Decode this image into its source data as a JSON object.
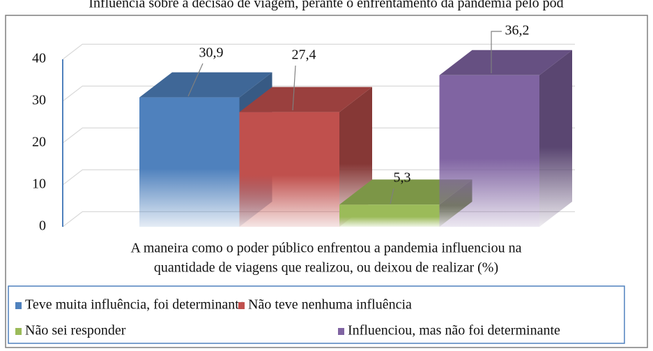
{
  "chart_data": {
    "type": "bar",
    "title": "Influência sobre a decisão de viagem, perante o enfrentamento da pandemia pelo pod",
    "xlabel": [
      "A maneira como o poder público enfrentou a pandemia influenciou na",
      "quantidade de viagens que realizou, ou deixou de realizar (%)"
    ],
    "series": [
      {
        "name": "Teve muita influência, foi determinante",
        "color": "#4f81bd",
        "values": [
          30.9
        ],
        "value_labels": [
          "30,9"
        ]
      },
      {
        "name": "Não teve nenhuma influência",
        "color": "#c0504d",
        "values": [
          27.4
        ],
        "value_labels": [
          "27,4"
        ]
      },
      {
        "name": "Não sei responder",
        "color": "#9bbb59",
        "values": [
          5.3
        ],
        "value_labels": [
          "5,3"
        ]
      },
      {
        "name": "Influenciou, mas não foi determinante",
        "color": "#8064a2",
        "values": [
          36.2
        ],
        "value_labels": [
          "36,2"
        ]
      }
    ],
    "ylim": [
      0,
      40
    ],
    "yticks": [
      0,
      10,
      20,
      30,
      40
    ],
    "grid": true,
    "legend": "bottom"
  }
}
